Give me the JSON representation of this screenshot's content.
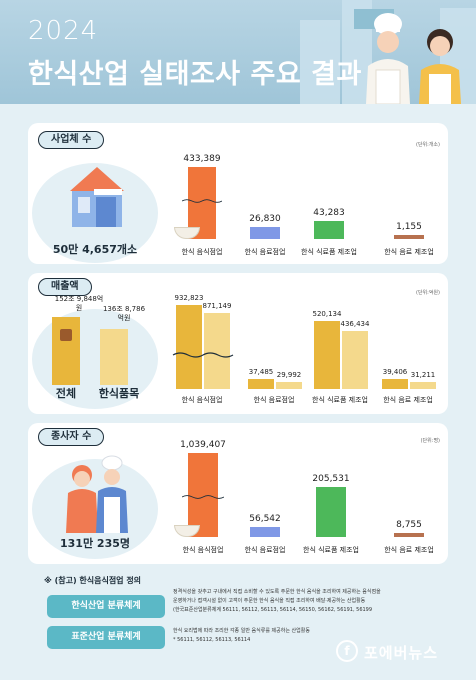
{
  "header": {
    "year": "2024",
    "title": "한식산업 실태조사 주요 결과"
  },
  "colors": {
    "orange": "#f0753a",
    "blue": "#7f98e6",
    "green": "#4db85a",
    "brown": "#b7714f",
    "gold": "#e8b63b",
    "lightgold": "#f4d98c"
  },
  "businesses": {
    "section_label": "사업체 수",
    "unit": "(단위:개소)",
    "total": "50만 4,657개소",
    "items": [
      {
        "label": "한식 음식점업",
        "value": "433,389",
        "raw": 433389
      },
      {
        "label": "한식 음료점업",
        "value": "26,830",
        "raw": 26830
      },
      {
        "label": "한식 식료품 제조업",
        "value": "43,283",
        "raw": 43283
      },
      {
        "label": "한식 음료 제조업",
        "value": "1,155",
        "raw": 1155
      }
    ]
  },
  "sales": {
    "section_label": "매출액",
    "unit": "(단위:억원)",
    "total_value": "152조 9,848억원",
    "total_label": "전체",
    "korean_value": "136조 8,786억원",
    "korean_label": "한식품목",
    "groups": [
      {
        "label": "한식 음식점업",
        "total": "932,823",
        "korean": "871,149"
      },
      {
        "label": "한식 음료점업",
        "total": "37,485",
        "korean": "29,992"
      },
      {
        "label": "한식 식료품 제조업",
        "total": "520,134",
        "korean": "436,434"
      },
      {
        "label": "한식 음료 제조업",
        "total": "39,406",
        "korean": "31,211"
      }
    ]
  },
  "employees": {
    "section_label": "종사자 수",
    "unit": "(단위:명)",
    "total": "131만 235명",
    "items": [
      {
        "label": "한식 음식점업",
        "value": "1,039,407"
      },
      {
        "label": "한식 음료점업",
        "value": "56,542"
      },
      {
        "label": "한식 식료품 제조업",
        "value": "205,531"
      },
      {
        "label": "한식 음료 제조업",
        "value": "8,755"
      }
    ]
  },
  "definition": {
    "title": "※ (참고) 한식음식점업 정의",
    "industry_label": "한식산업 분류체계",
    "industry_text_1": "정격식성을 갖추고 구내에서 직접 소비할 수 있도록 주문한 한식 음식을 조리하여 제공하는 음식점을",
    "industry_text_2": "운영하거나 접객시설 없이 고객이 주문한 한식 음식을 직접 조리하여 배달·제공하는 산업활동",
    "industry_text_3": "(한국표준산업분류체계 56111, 56112, 56113, 56114, 56150, 56162, 56191, 56199",
    "standard_label": "표준산업 분류체계",
    "standard_text_1": "한식 요리법에 따라 조리한 각종 일반 음식류를 제공하는 산업활동",
    "standard_text_2": "* 56111, 56112, 56113, 56114"
  },
  "logo": {
    "text": "포에버뉴스",
    "mark": "f"
  }
}
